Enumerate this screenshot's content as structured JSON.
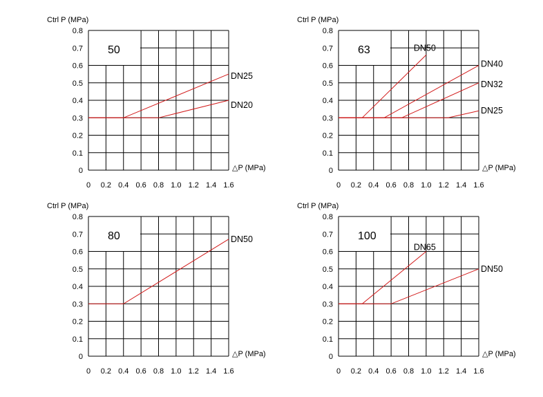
{
  "chart_data": [
    {
      "type": "line",
      "title": "50",
      "ylabel": "Ctrl P (MPa)",
      "xlabel": "△P (MPa)",
      "xlim": [
        0,
        1.6
      ],
      "ylim": [
        0,
        0.8
      ],
      "x_ticks": [
        "0",
        "0.2",
        "0.4",
        "0.6",
        "0.8",
        "1.0",
        "1.2",
        "1.4",
        "1.6"
      ],
      "y_ticks": [
        "0",
        "0.1",
        "0.2",
        "0.3",
        "0.4",
        "0.5",
        "0.6",
        "0.7",
        "0.8"
      ],
      "grid": true,
      "series": [
        {
          "name": "DN25",
          "x": [
            0,
            0.4,
            1.6
          ],
          "y": [
            0.3,
            0.3,
            0.55
          ]
        },
        {
          "name": "DN20",
          "x": [
            0,
            0.8,
            1.6
          ],
          "y": [
            0.3,
            0.3,
            0.4
          ]
        }
      ]
    },
    {
      "type": "line",
      "title": "63",
      "ylabel": "Ctrl P (MPa)",
      "xlabel": "△P (MPa)",
      "xlim": [
        0,
        1.6
      ],
      "ylim": [
        0,
        0.8
      ],
      "x_ticks": [
        "0",
        "0.2",
        "0.4",
        "0.6",
        "0.8",
        "1.0",
        "1.2",
        "1.4",
        "1.6"
      ],
      "y_ticks": [
        "0",
        "0.1",
        "0.2",
        "0.3",
        "0.4",
        "0.5",
        "0.6",
        "0.7",
        "0.8"
      ],
      "grid": true,
      "series": [
        {
          "name": "DN50",
          "x": [
            0,
            0.27,
            1.0
          ],
          "y": [
            0.3,
            0.3,
            0.66
          ]
        },
        {
          "name": "DN40",
          "x": [
            0,
            0.52,
            1.6
          ],
          "y": [
            0.3,
            0.3,
            0.6
          ]
        },
        {
          "name": "DN32",
          "x": [
            0,
            0.72,
            1.6
          ],
          "y": [
            0.3,
            0.3,
            0.5
          ]
        },
        {
          "name": "DN25",
          "x": [
            0,
            1.25,
            1.6
          ],
          "y": [
            0.3,
            0.3,
            0.34
          ]
        }
      ]
    },
    {
      "type": "line",
      "title": "80",
      "ylabel": "Ctrl P (MPa)",
      "xlabel": "△P (MPa)",
      "xlim": [
        0,
        1.6
      ],
      "ylim": [
        0,
        0.8
      ],
      "x_ticks": [
        "0",
        "0.2",
        "0.4",
        "0.6",
        "0.8",
        "1.0",
        "1.2",
        "1.4",
        "1.6"
      ],
      "y_ticks": [
        "0",
        "0.1",
        "0.2",
        "0.3",
        "0.4",
        "0.5",
        "0.6",
        "0.7",
        "0.8"
      ],
      "grid": true,
      "series": [
        {
          "name": "DN50",
          "x": [
            0,
            0.4,
            1.6
          ],
          "y": [
            0.3,
            0.3,
            0.67
          ]
        }
      ]
    },
    {
      "type": "line",
      "title": "100",
      "ylabel": "Ctrl P (MPa)",
      "xlabel": "△P (MPa)",
      "xlim": [
        0,
        1.6
      ],
      "ylim": [
        0,
        0.8
      ],
      "x_ticks": [
        "0",
        "0.2",
        "0.4",
        "0.6",
        "0.8",
        "1.0",
        "1.2",
        "1.4",
        "1.6"
      ],
      "y_ticks": [
        "0",
        "0.1",
        "0.2",
        "0.3",
        "0.4",
        "0.5",
        "0.6",
        "0.7",
        "0.8"
      ],
      "grid": true,
      "series": [
        {
          "name": "DN65",
          "x": [
            0,
            0.27,
            1.0
          ],
          "y": [
            0.3,
            0.3,
            0.6
          ]
        },
        {
          "name": "DN50",
          "x": [
            0,
            0.6,
            1.6
          ],
          "y": [
            0.3,
            0.3,
            0.5
          ]
        }
      ]
    }
  ],
  "colors": {
    "series": "#d21a1a",
    "grid": "#000000"
  }
}
